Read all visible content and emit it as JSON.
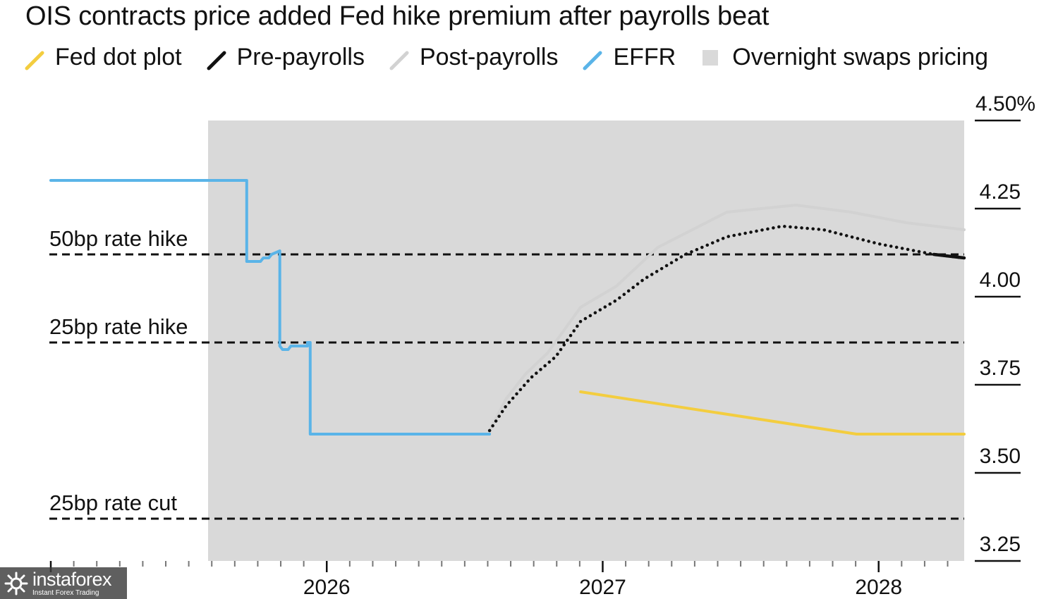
{
  "chart_data": {
    "type": "line",
    "title": "OIS contracts price added Fed hike premium after payrolls beat",
    "y_unit": "%",
    "ylim": [
      3.25,
      4.5
    ],
    "y_ticks": [
      {
        "value": 4.5,
        "label": "4.50%"
      },
      {
        "value": 4.25,
        "label": "4.25"
      },
      {
        "value": 4.0,
        "label": "4.00"
      },
      {
        "value": 3.75,
        "label": "3.75"
      },
      {
        "value": 3.5,
        "label": "3.50"
      },
      {
        "value": 3.25,
        "label": "3.25"
      }
    ],
    "x_ticks": [
      {
        "value": 2026,
        "label": "2026"
      },
      {
        "value": 2027,
        "label": "2027"
      },
      {
        "value": 2028,
        "label": "2028"
      }
    ],
    "xlim": [
      2025.0,
      2028.31
    ],
    "shaded_region": {
      "name": "Overnight swaps pricing",
      "x": [
        2025.57,
        2028.31
      ],
      "color": "#d9d9d9"
    },
    "reference_lines": [
      {
        "label": "50bp rate hike",
        "value": 4.12
      },
      {
        "label": "25bp rate hike",
        "value": 3.87
      },
      {
        "label": "25bp rate cut",
        "value": 3.37
      }
    ],
    "series": [
      {
        "name": "Fed dot plot",
        "color": "#f3cd3f",
        "style": "solid",
        "x": [
          2026.92,
          2027.92,
          2028.31
        ],
        "y": [
          3.73,
          3.61,
          3.61
        ]
      },
      {
        "name": "Pre-payrolls",
        "color": "#111111",
        "style": "dotted",
        "x": [
          2026.59,
          2026.65,
          2026.74,
          2026.83,
          2026.92,
          2027.05,
          2027.15,
          2027.3,
          2027.45,
          2027.65,
          2027.8,
          2028.0,
          2028.2,
          2028.31
        ],
        "y": [
          3.62,
          3.69,
          3.77,
          3.83,
          3.93,
          3.99,
          4.05,
          4.12,
          4.17,
          4.2,
          4.19,
          4.15,
          4.12,
          4.11
        ]
      },
      {
        "name": "Post-payrolls",
        "color": "#d2d2d2",
        "style": "solid",
        "x": [
          2026.59,
          2026.65,
          2026.72,
          2026.8,
          2026.92,
          2027.05,
          2027.2,
          2027.45,
          2027.7,
          2027.9,
          2028.1,
          2028.31
        ],
        "y": [
          3.62,
          3.71,
          3.78,
          3.84,
          3.97,
          4.03,
          4.14,
          4.24,
          4.26,
          4.24,
          4.21,
          4.19
        ]
      },
      {
        "name": "EFFR",
        "color": "#5ab4e8",
        "style": "solid",
        "step": true,
        "x": [
          2025.0,
          2025.71,
          2025.71,
          2025.73,
          2025.76,
          2025.77,
          2025.79,
          2025.8,
          2025.83,
          2025.83,
          2025.84,
          2025.86,
          2025.87,
          2025.9,
          2025.93,
          2025.93,
          2025.94,
          2025.94,
          2026.59
        ],
        "y": [
          4.33,
          4.33,
          4.1,
          4.1,
          4.1,
          4.11,
          4.11,
          4.12,
          4.13,
          3.86,
          3.85,
          3.85,
          3.86,
          3.86,
          3.86,
          3.87,
          3.87,
          3.61,
          3.61
        ]
      }
    ]
  },
  "legend": {
    "items": [
      {
        "label": "Fed dot plot",
        "color": "#f3cd3f"
      },
      {
        "label": "Pre-payrolls",
        "color": "#111111"
      },
      {
        "label": "Post-payrolls",
        "color": "#d2d2d2"
      },
      {
        "label": "EFFR",
        "color": "#5ab4e8"
      }
    ],
    "shade_label": "Overnight swaps pricing"
  },
  "watermark": {
    "brand": "instaforex",
    "tagline": "Instant Forex Trading"
  }
}
